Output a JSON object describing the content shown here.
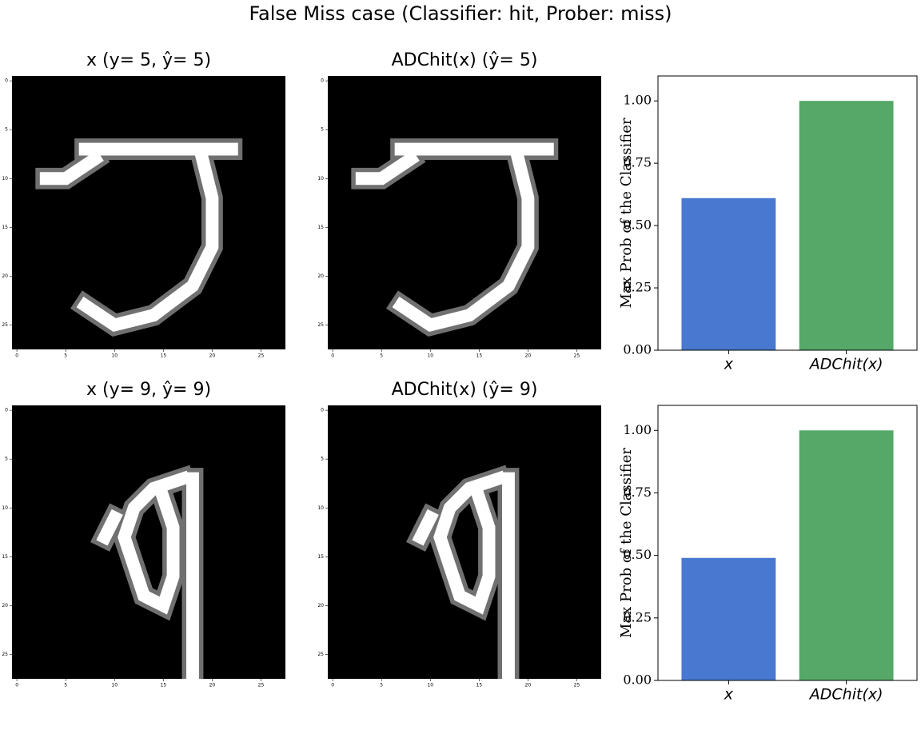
{
  "title": "False Miss case (Classifier: hit, Prober: miss)",
  "chart_data": [
    {
      "type": "image",
      "title": "x (y= 5, ŷ= 5)",
      "xlim": [
        -0.5,
        27.5
      ],
      "ylim": [
        27.5,
        -0.5
      ],
      "xticks": [
        0,
        5,
        10,
        15,
        20,
        25
      ],
      "yticks": [
        0,
        5,
        10,
        15,
        20,
        25
      ]
    },
    {
      "type": "image",
      "title": "ADChit(x) (ŷ= 5)",
      "xlim": [
        -0.5,
        27.5
      ],
      "ylim": [
        27.5,
        -0.5
      ],
      "xticks": [
        0,
        5,
        10,
        15,
        20,
        25
      ],
      "yticks": [
        0,
        5,
        10,
        15,
        20,
        25
      ]
    },
    {
      "type": "bar",
      "y_label": "Max Prob of the Classifier",
      "categories": [
        "x",
        "ADChit(x)"
      ],
      "values": [
        0.61,
        1.0
      ],
      "colors": [
        "#4878cf",
        "#55a868"
      ],
      "ylim": [
        0,
        1.1
      ],
      "yticks": [
        {
          "value": 0,
          "label": "0.00"
        },
        {
          "value": 0.25,
          "label": "0.25"
        },
        {
          "value": 0.5,
          "label": "0.50"
        },
        {
          "value": 0.75,
          "label": "0.75"
        },
        {
          "value": 1,
          "label": "1.00"
        }
      ]
    },
    {
      "type": "image",
      "title": "x (y= 9, ŷ= 9)",
      "xlim": [
        -0.5,
        27.5
      ],
      "ylim": [
        27.5,
        -0.5
      ],
      "xticks": [
        0,
        5,
        10,
        15,
        20,
        25
      ],
      "yticks": [
        0,
        5,
        10,
        15,
        20,
        25
      ]
    },
    {
      "type": "image",
      "title": "ADChit(x) (ŷ= 9)",
      "xlim": [
        -0.5,
        27.5
      ],
      "ylim": [
        27.5,
        -0.5
      ],
      "xticks": [
        0,
        5,
        10,
        15,
        20,
        25
      ],
      "yticks": [
        0,
        5,
        10,
        15,
        20,
        25
      ]
    },
    {
      "type": "bar",
      "y_label": "Max Prob of the Classifier",
      "categories": [
        "x",
        "ADChit(x)"
      ],
      "values": [
        0.49,
        1.0
      ],
      "colors": [
        "#4878cf",
        "#55a868"
      ],
      "ylim": [
        0,
        1.1
      ],
      "yticks": [
        {
          "value": 0,
          "label": "0.00"
        },
        {
          "value": 0.25,
          "label": "0.25"
        },
        {
          "value": 0.5,
          "label": "0.50"
        },
        {
          "value": 0.75,
          "label": "0.75"
        },
        {
          "value": 1,
          "label": "1.00"
        }
      ]
    }
  ]
}
